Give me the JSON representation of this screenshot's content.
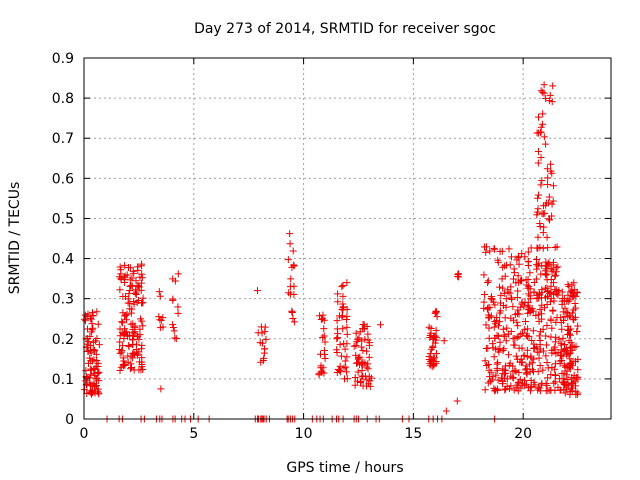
{
  "chart_data": {
    "type": "scatter",
    "title": "Day 273 of 2014, SRMTID for receiver sgoc",
    "xlabel": "GPS time / hours",
    "ylabel": "SRMTID / TECUs",
    "xlim": [
      0,
      24
    ],
    "ylim": [
      0,
      0.9
    ],
    "xticks": [
      0,
      5,
      10,
      15,
      20
    ],
    "yticks": [
      0,
      0.1,
      0.2,
      0.3,
      0.4,
      0.5,
      0.6,
      0.7,
      0.8,
      0.9
    ],
    "grid": true,
    "marker": "+",
    "color": "#ee0000",
    "clusters": [
      {
        "x": [
          0.0,
          0.7
        ],
        "y": [
          0.06,
          0.27
        ],
        "n": 90
      },
      {
        "x": [
          1.6,
          2.7
        ],
        "y": [
          0.12,
          0.39
        ],
        "n": 140
      },
      {
        "x": [
          3.4,
          3.6
        ],
        "y": [
          0.22,
          0.32
        ],
        "n": 8
      },
      {
        "x": [
          4.0,
          4.3
        ],
        "y": [
          0.2,
          0.38
        ],
        "n": 12
      },
      {
        "x": [
          7.9,
          8.3
        ],
        "y": [
          0.14,
          0.23
        ],
        "n": 14
      },
      {
        "x": [
          9.3,
          9.6
        ],
        "y": [
          0.24,
          0.47
        ],
        "n": 18
      },
      {
        "x": [
          10.7,
          11.0
        ],
        "y": [
          0.11,
          0.29
        ],
        "n": 22
      },
      {
        "x": [
          11.5,
          12.0
        ],
        "y": [
          0.1,
          0.34
        ],
        "n": 45
      },
      {
        "x": [
          12.3,
          13.1
        ],
        "y": [
          0.08,
          0.24
        ],
        "n": 55
      },
      {
        "x": [
          15.7,
          16.1
        ],
        "y": [
          0.13,
          0.27
        ],
        "n": 40
      },
      {
        "x": [
          17.0,
          17.1
        ],
        "y": [
          0.35,
          0.37
        ],
        "n": 4
      },
      {
        "x": [
          18.2,
          21.6
        ],
        "y": [
          0.07,
          0.43
        ],
        "n": 360
      },
      {
        "x": [
          20.6,
          21.4
        ],
        "y": [
          0.3,
          0.84
        ],
        "n": 90
      },
      {
        "x": [
          21.6,
          22.5
        ],
        "y": [
          0.06,
          0.34
        ],
        "n": 140
      }
    ],
    "points": [
      {
        "x": 3.5,
        "y": 0.075
      },
      {
        "x": 13.5,
        "y": 0.235
      },
      {
        "x": 16.4,
        "y": 0.195
      },
      {
        "x": 16.5,
        "y": 0.02
      },
      {
        "x": 17.0,
        "y": 0.045
      },
      {
        "x": 18.7,
        "y": 0.07
      },
      {
        "x": 7.9,
        "y": 0.32
      }
    ],
    "zero_points_x": [
      1.05,
      1.6,
      1.75,
      2.6,
      2.75,
      3.3,
      3.45,
      3.55,
      4.05,
      4.15,
      4.45,
      4.6,
      4.85,
      5.2,
      5.7,
      7.8,
      7.9,
      7.95,
      8.05,
      8.1,
      8.15,
      8.2,
      8.3,
      8.45,
      9.25,
      9.3,
      9.4,
      9.5,
      9.6,
      10.4,
      10.6,
      10.75,
      10.9,
      11.3,
      11.5,
      11.6,
      11.8,
      12.3,
      12.4,
      12.5,
      12.9,
      13.3,
      13.45,
      14.5,
      14.8,
      15.7,
      15.9,
      16.1,
      16.3,
      18.7
    ]
  }
}
